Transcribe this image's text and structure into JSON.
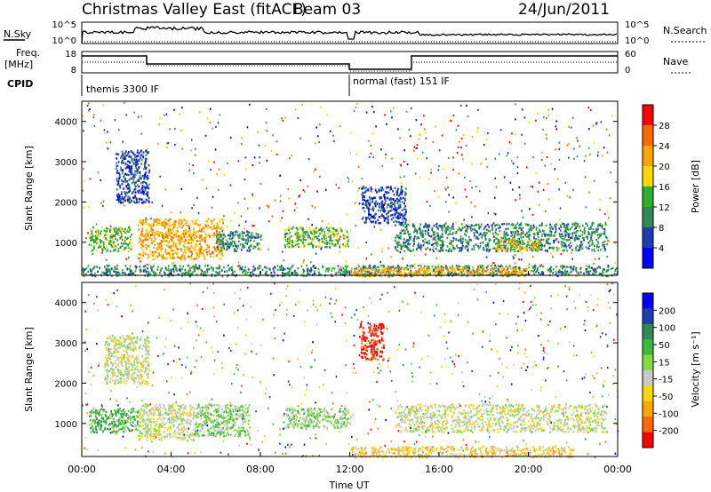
{
  "header": {
    "title": "Christmas Valley East (fitACF)",
    "beam": "Beam 03",
    "date": "24/Jun/2011"
  },
  "panels": {
    "nsky": {
      "label": "N.Sky",
      "left_ticks": [
        "10^5",
        "10^0"
      ],
      "right_ticks": [
        "10^5",
        "10^0"
      ],
      "right_label": "N.Search"
    },
    "freq": {
      "label_line1": "Freq.",
      "label_line2": "[MHz]",
      "left_ticks": [
        "18",
        "8"
      ],
      "right_ticks": [
        "60",
        "0"
      ],
      "right_label": "Nave"
    },
    "cpid": {
      "label": "CPID",
      "modes": [
        "themis 3300 IF",
        "normal (fast) 151 IF"
      ]
    }
  },
  "chart_data": [
    {
      "type": "heatmap",
      "name": "power",
      "ylabel": "Slant Range [km]",
      "ylim": [
        180,
        4500
      ],
      "y_ticks": [
        "4000",
        "3000",
        "2000",
        "1000"
      ],
      "colorbar": {
        "label": "Power [dB]",
        "ticks": [
          "28",
          "24",
          "20",
          "16",
          "12",
          "8",
          "4"
        ],
        "colors": [
          "#ff0000",
          "#ff6a00",
          "#ffa500",
          "#ffd800",
          "#2db12d",
          "#2e8b57",
          "#1e3cb4",
          "#0000ff"
        ]
      },
      "regions": [
        {
          "t0": 0.3,
          "t1": 2.2,
          "r0": 800,
          "r1": 1400,
          "level": 4
        },
        {
          "t0": 1.5,
          "t1": 3.0,
          "r0": 2000,
          "r1": 3300,
          "level": 6
        },
        {
          "t0": 2.5,
          "t1": 6.3,
          "r0": 600,
          "r1": 1600,
          "level": 2
        },
        {
          "t0": 6.0,
          "t1": 8.0,
          "r0": 800,
          "r1": 1300,
          "level": 5
        },
        {
          "t0": 9.0,
          "t1": 12.0,
          "r0": 900,
          "r1": 1400,
          "level": 4
        },
        {
          "t0": 12.5,
          "t1": 14.5,
          "r0": 1500,
          "r1": 2400,
          "level": 6
        },
        {
          "t0": 14.0,
          "t1": 23.5,
          "r0": 800,
          "r1": 1500,
          "level": 5
        },
        {
          "t0": 18.5,
          "t1": 20.5,
          "r0": 800,
          "r1": 1100,
          "level": 3
        },
        {
          "t0": 0.0,
          "t1": 24.0,
          "r0": 180,
          "r1": 450,
          "level": 5
        },
        {
          "t0": 12.0,
          "t1": 20.0,
          "r0": 180,
          "r1": 400,
          "level": 2
        }
      ]
    },
    {
      "type": "heatmap",
      "name": "velocity",
      "xlabel": "Time UT",
      "x_ticks": [
        "00:00",
        "04:00",
        "08:00",
        "12:00",
        "16:00",
        "20:00",
        "00:00"
      ],
      "ylabel": "Slant Range [km]",
      "ylim": [
        180,
        4500
      ],
      "y_ticks": [
        "4000",
        "3000",
        "2000",
        "1000"
      ],
      "colorbar": {
        "label": "Velocity [m s⁻¹]",
        "ticks": [
          "200",
          "100",
          "50",
          "15",
          "-15",
          "-50",
          "-100",
          "-200"
        ],
        "colors": [
          "#0000ff",
          "#1e3cb4",
          "#2e8b57",
          "#3cbb3c",
          "#7fdd40",
          "#c8c8c8",
          "#ffd800",
          "#ffa500",
          "#ff6a00",
          "#ff0000"
        ]
      },
      "regions": [
        {
          "t0": 0.3,
          "t1": 2.5,
          "r0": 800,
          "r1": 1400,
          "level": 3
        },
        {
          "t0": 1.0,
          "t1": 3.0,
          "r0": 2000,
          "r1": 3200,
          "level": 5
        },
        {
          "t0": 2.5,
          "t1": 5.0,
          "r0": 600,
          "r1": 1500,
          "level": 5
        },
        {
          "t0": 5.0,
          "t1": 7.5,
          "r0": 700,
          "r1": 1500,
          "level": 4
        },
        {
          "t0": 9.0,
          "t1": 12.0,
          "r0": 900,
          "r1": 1400,
          "level": 4
        },
        {
          "t0": 12.4,
          "t1": 13.5,
          "r0": 2600,
          "r1": 3500,
          "level": 9
        },
        {
          "t0": 14.0,
          "t1": 23.5,
          "r0": 800,
          "r1": 1500,
          "level": 5
        },
        {
          "t0": 12.0,
          "t1": 22.0,
          "r0": 180,
          "r1": 450,
          "level": 6
        }
      ]
    }
  ]
}
